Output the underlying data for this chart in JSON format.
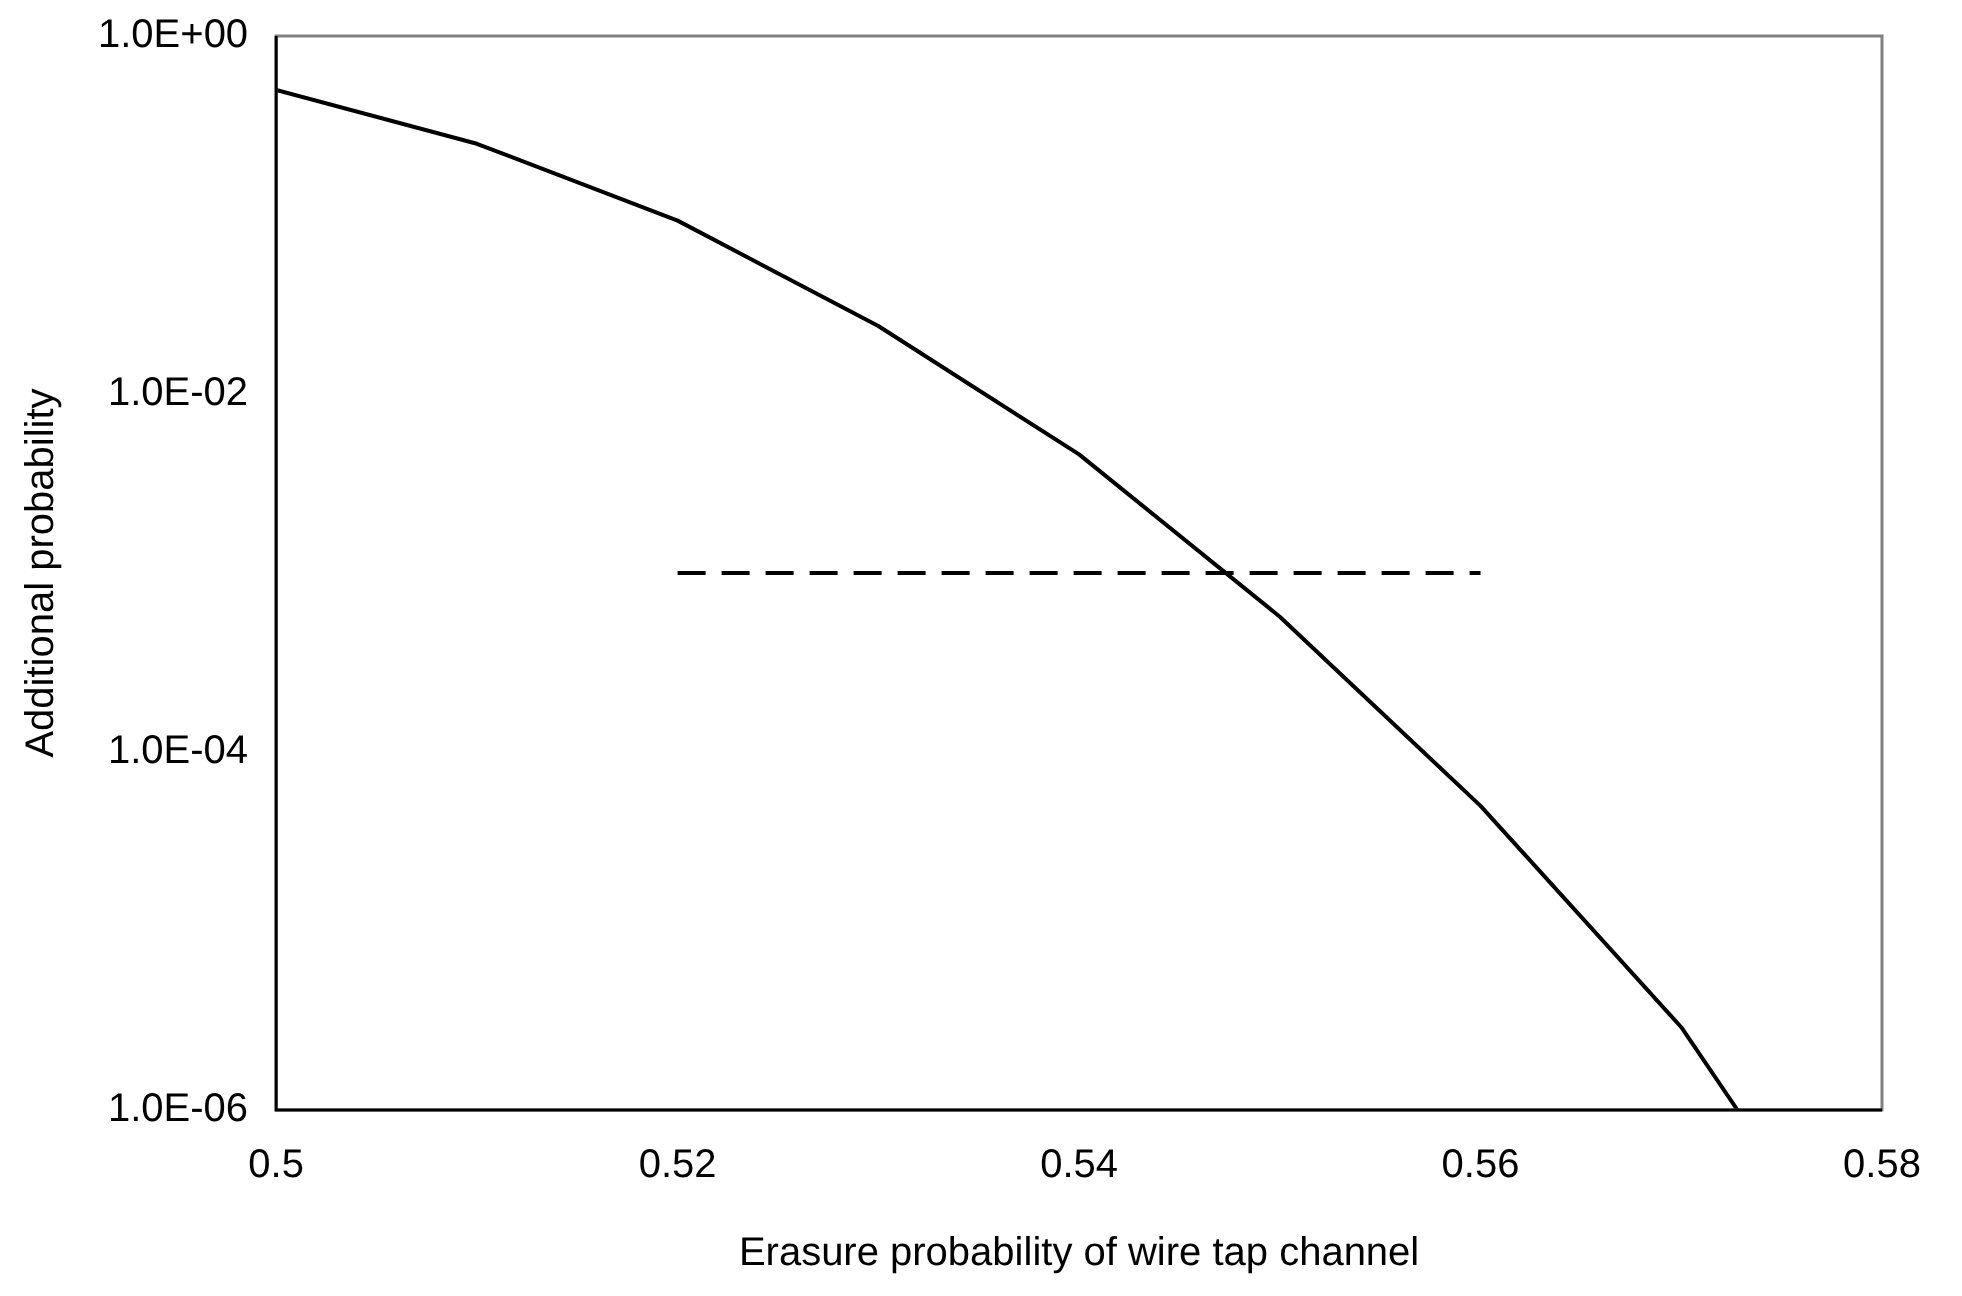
{
  "chart_data": {
    "type": "line",
    "xlabel": "Erasure probability of wire tap channel",
    "ylabel": "Additional probability",
    "log": "y",
    "grid": false,
    "legend": false,
    "marker": "none",
    "xlim": [
      0.5,
      0.58
    ],
    "xticks": [
      0.5,
      0.52,
      0.54,
      0.56,
      0.58
    ],
    "ylim": [
      1e-06,
      1
    ],
    "yticks": [
      {
        "value": 1,
        "label": "1.0E+00"
      },
      {
        "value": 0.01,
        "label": "1.0E-02"
      },
      {
        "value": 0.0001,
        "label": "1.0E-04"
      },
      {
        "value": 1e-06,
        "label": "1.0E-06"
      }
    ],
    "series": [
      {
        "color": "#000000",
        "line_style": "solid",
        "x": [
          0.5,
          0.51,
          0.52,
          0.53,
          0.54,
          0.55,
          0.56,
          0.57,
          0.5728
        ],
        "values": [
          0.5,
          0.25,
          0.093,
          0.024,
          0.0046,
          0.00057,
          5e-05,
          2.9e-06,
          1e-06
        ]
      },
      {
        "color": "#000000",
        "line_style": "dashed",
        "x": [
          0.52,
          0.56
        ],
        "values": [
          0.001,
          0.001
        ]
      }
    ]
  }
}
